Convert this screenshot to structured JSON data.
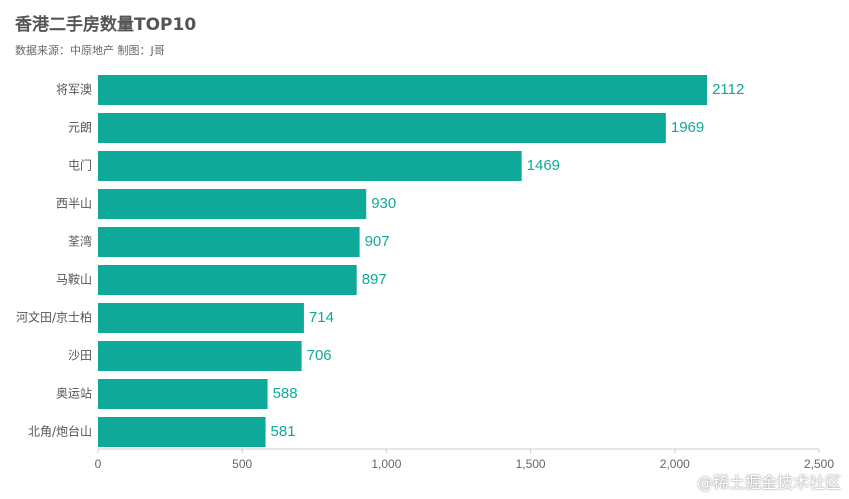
{
  "chart_data": {
    "type": "bar",
    "orientation": "horizontal",
    "title": "香港二手房数量TOP10",
    "subtitle": "数据来源：中原地产  制图：J哥",
    "categories": [
      "将军澳",
      "元朗",
      "屯门",
      "西半山",
      "荃湾",
      "马鞍山",
      "河文田/京士柏",
      "沙田",
      "奥运站",
      "北角/炮台山"
    ],
    "values": [
      2112,
      1969,
      1469,
      930,
      907,
      897,
      714,
      706,
      588,
      581
    ],
    "xlim": [
      0,
      2500
    ],
    "xticks": [
      0,
      500,
      1000,
      1500,
      2000,
      2500
    ],
    "xtick_labels": [
      "0",
      "500",
      "1,000",
      "1,500",
      "2,000",
      "2,500"
    ],
    "bar_color": "#0fa99a",
    "label_color": "#0fa99a",
    "grid": false,
    "legend": "none"
  },
  "watermark": "@稀土掘金技术社区"
}
